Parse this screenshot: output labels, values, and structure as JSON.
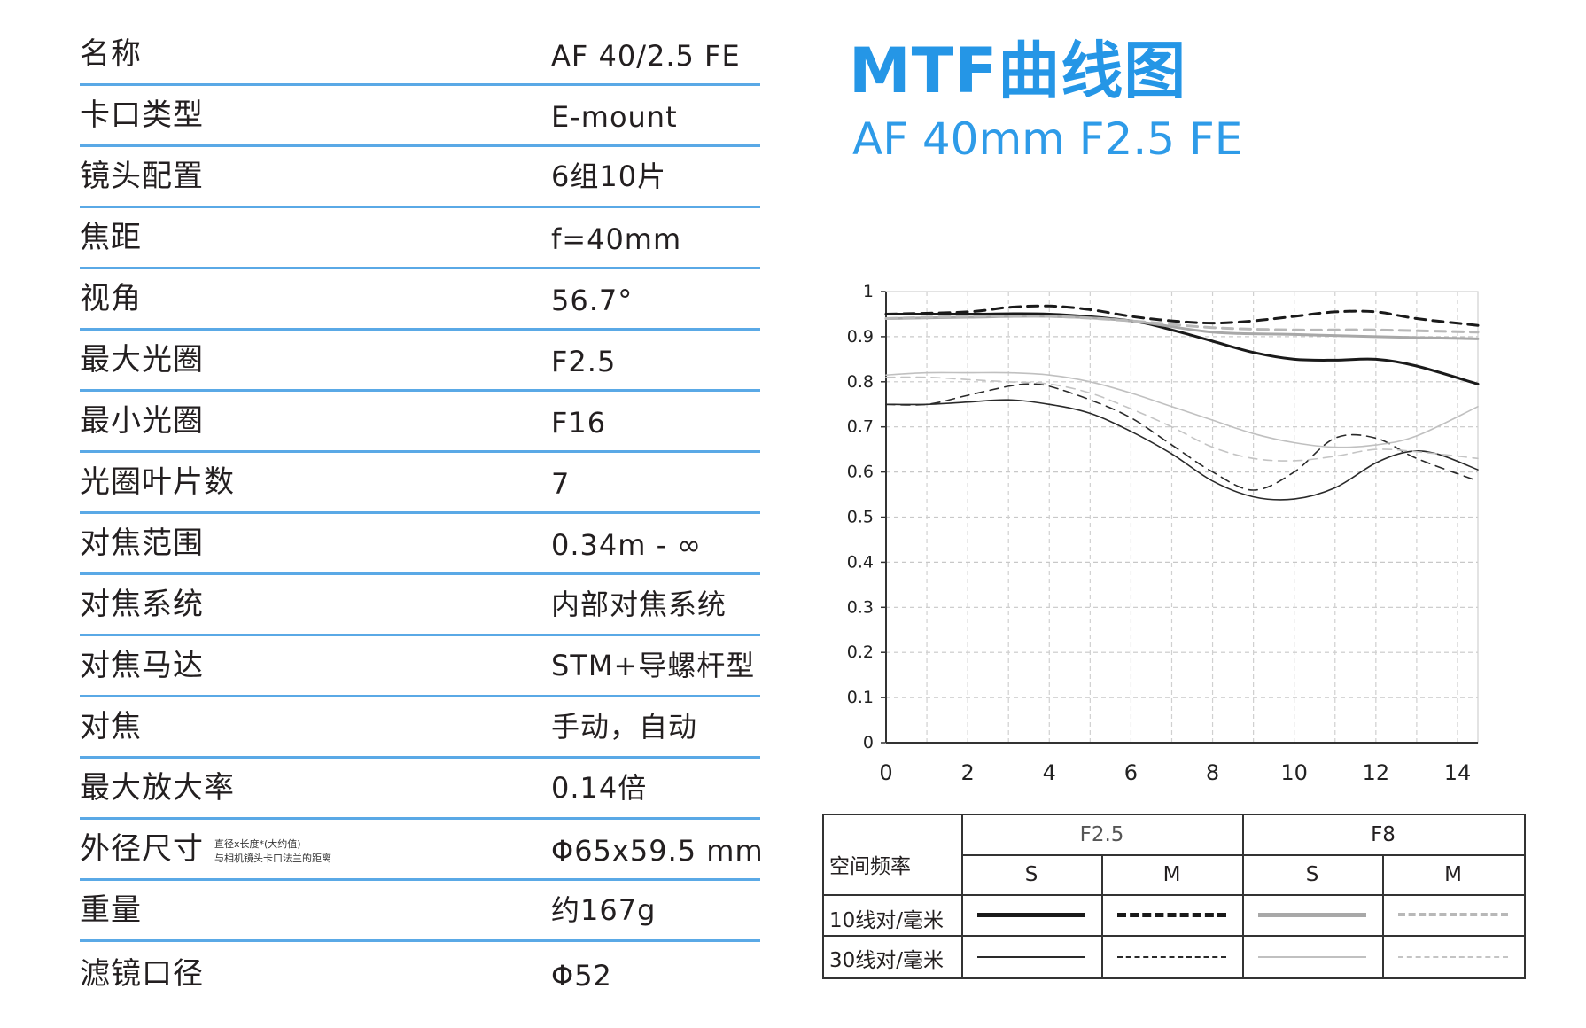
{
  "specs": [
    {
      "label": "名称",
      "value": "AF 40/2.5 FE"
    },
    {
      "label": "卡口类型",
      "value": "E-mount"
    },
    {
      "label": "镜头配置",
      "value": "6组10片"
    },
    {
      "label": "焦距",
      "value": "f=40mm"
    },
    {
      "label": "视角",
      "value": "56.7°"
    },
    {
      "label": "最大光圈",
      "value": "F2.5"
    },
    {
      "label": "最小光圈",
      "value": "F16"
    },
    {
      "label": "光圈叶片数",
      "value": "7"
    },
    {
      "label": "对焦范围",
      "value": "0.34m - ∞"
    },
    {
      "label": "对焦系统",
      "value": "内部对焦系统"
    },
    {
      "label": "对焦马达",
      "value": "STM+导螺杆型"
    },
    {
      "label": "对焦",
      "value": "手动，自动"
    },
    {
      "label": "最大放大率",
      "value": "0.14倍"
    },
    {
      "label": "外径尺寸",
      "value": "Φ65x59.5 mm",
      "note_line1": "直径x长度*(大约值)",
      "note_line2": "与相机镜头卡口法兰的距离"
    },
    {
      "label": "重量",
      "value": "约167g"
    },
    {
      "label": "滤镜口径",
      "value": "Φ52"
    }
  ],
  "header": {
    "title": "MTF曲线图",
    "subtitle": "AF 40mm F2.5 FE"
  },
  "legend": {
    "row_header": "空间频率",
    "aperture_f25": "F2.5",
    "aperture_f8": "F8",
    "sagittal": "S",
    "meridional": "M",
    "freq_10": "10线对/毫米",
    "freq_30": "30线对/毫米"
  },
  "chart_data": {
    "type": "line",
    "xlim": [
      0,
      14.5
    ],
    "ylim": [
      0,
      1
    ],
    "x_ticks": [
      "0",
      "2",
      "4",
      "6",
      "8",
      "10",
      "12",
      "14"
    ],
    "y_ticks": [
      "0",
      "0.1",
      "0.2",
      "0.3",
      "0.4",
      "0.5",
      "0.6",
      "0.7",
      "0.8",
      "0.9",
      "1"
    ],
    "grid": true,
    "series": [
      {
        "aperture": "F2.5",
        "freq": "10",
        "dir": "S",
        "color": "#1a1a1a",
        "dash": "solid",
        "width": 3,
        "x": [
          0,
          2,
          4,
          6,
          7,
          8,
          9,
          10,
          11,
          12,
          13,
          14.5
        ],
        "y": [
          0.95,
          0.95,
          0.95,
          0.935,
          0.915,
          0.89,
          0.865,
          0.85,
          0.848,
          0.85,
          0.835,
          0.795
        ]
      },
      {
        "aperture": "F2.5",
        "freq": "10",
        "dir": "M",
        "color": "#1a1a1a",
        "dash": "dashed",
        "width": 3,
        "x": [
          0,
          2,
          3,
          4,
          5,
          6,
          7,
          8,
          9,
          10,
          11,
          12,
          13,
          14.5
        ],
        "y": [
          0.95,
          0.955,
          0.965,
          0.968,
          0.96,
          0.945,
          0.935,
          0.93,
          0.935,
          0.945,
          0.955,
          0.955,
          0.94,
          0.925
        ]
      },
      {
        "aperture": "F8",
        "freq": "10",
        "dir": "S",
        "color": "#a8a8a8",
        "dash": "solid",
        "width": 3,
        "x": [
          0,
          2,
          4,
          6,
          8,
          10,
          12,
          14.5
        ],
        "y": [
          0.94,
          0.943,
          0.945,
          0.935,
          0.91,
          0.905,
          0.9,
          0.895
        ]
      },
      {
        "aperture": "F8",
        "freq": "10",
        "dir": "M",
        "color": "#b8b8b8",
        "dash": "dashed",
        "width": 3,
        "x": [
          0,
          2,
          4,
          6,
          8,
          10,
          12,
          14.5
        ],
        "y": [
          0.94,
          0.945,
          0.945,
          0.935,
          0.92,
          0.915,
          0.915,
          0.91
        ]
      },
      {
        "aperture": "F2.5",
        "freq": "30",
        "dir": "S",
        "color": "#2a2a2a",
        "dash": "solid",
        "width": 1.6,
        "x": [
          0,
          1,
          2,
          3,
          4,
          5,
          6,
          7,
          8,
          9,
          10,
          11,
          12,
          12.8,
          13.5,
          14.5
        ],
        "y": [
          0.75,
          0.75,
          0.755,
          0.76,
          0.75,
          0.73,
          0.69,
          0.64,
          0.58,
          0.545,
          0.54,
          0.565,
          0.62,
          0.645,
          0.64,
          0.605
        ]
      },
      {
        "aperture": "F2.5",
        "freq": "30",
        "dir": "M",
        "color": "#2a2a2a",
        "dash": "dashed",
        "width": 1.6,
        "x": [
          0,
          1,
          2,
          3,
          3.5,
          4,
          5,
          6,
          7,
          8,
          9,
          10,
          11,
          12,
          13,
          14.5
        ],
        "y": [
          0.75,
          0.75,
          0.77,
          0.79,
          0.795,
          0.79,
          0.76,
          0.72,
          0.66,
          0.6,
          0.56,
          0.6,
          0.675,
          0.675,
          0.63,
          0.58
        ]
      },
      {
        "aperture": "F8",
        "freq": "30",
        "dir": "S",
        "color": "#c0c0c0",
        "dash": "solid",
        "width": 1.6,
        "x": [
          0,
          1,
          2,
          3,
          4,
          5,
          6,
          7,
          8,
          9,
          10,
          11,
          12,
          13,
          14.5
        ],
        "y": [
          0.815,
          0.82,
          0.82,
          0.82,
          0.815,
          0.8,
          0.775,
          0.745,
          0.715,
          0.685,
          0.665,
          0.655,
          0.66,
          0.68,
          0.745
        ]
      },
      {
        "aperture": "F8",
        "freq": "30",
        "dir": "M",
        "color": "#c4c4c4",
        "dash": "dashed",
        "width": 1.6,
        "x": [
          0,
          1,
          2,
          3,
          4,
          5,
          6,
          7,
          8,
          9,
          10,
          11,
          12,
          13,
          14.5
        ],
        "y": [
          0.81,
          0.81,
          0.805,
          0.8,
          0.795,
          0.775,
          0.74,
          0.7,
          0.655,
          0.63,
          0.625,
          0.635,
          0.65,
          0.645,
          0.63
        ]
      }
    ]
  }
}
